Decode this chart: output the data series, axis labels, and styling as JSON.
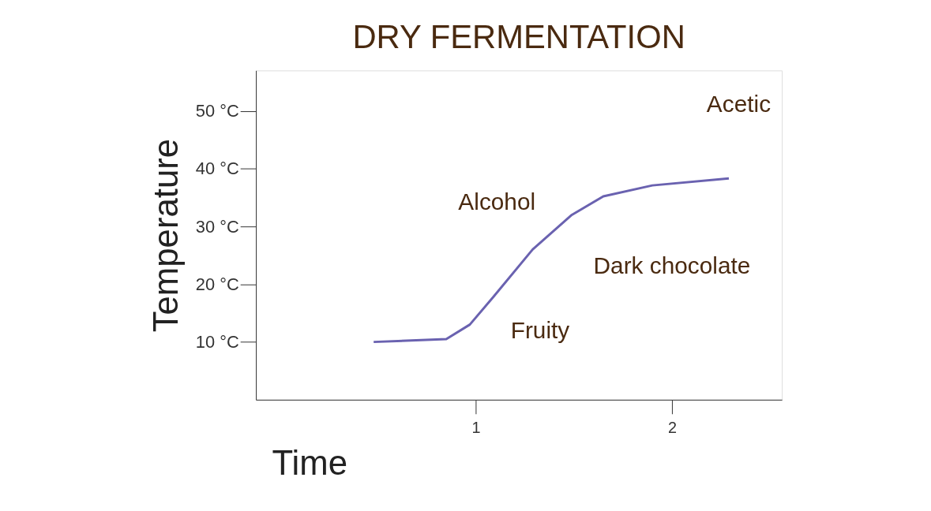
{
  "chart_data": {
    "type": "line",
    "title": "DRY FERMENTATION",
    "xlabel": "Time",
    "ylabel": "Temperature",
    "series": [
      {
        "color": "#6a62b0",
        "x": [
          0.48,
          0.85,
          0.97,
          1.09,
          1.29,
          1.49,
          1.65,
          1.9,
          2.29
        ],
        "values": [
          10,
          10.5,
          13,
          17.8,
          26,
          32,
          35.2,
          37.1,
          38.3
        ]
      }
    ],
    "xlim": [
      -0.12,
      2.56
    ],
    "xticks": [
      1,
      2
    ],
    "ylim": [
      0,
      57
    ],
    "yticks": [
      {
        "value": 10,
        "label": "10 °C"
      },
      {
        "value": 20,
        "label": "20 °C"
      },
      {
        "value": 30,
        "label": "30 °C"
      },
      {
        "value": 40,
        "label": "40 °C"
      },
      {
        "value": 50,
        "label": "50 °C"
      }
    ],
    "annotations": [
      "Alcohol",
      "Dark chocolate",
      "Fruity",
      "Acetic"
    ],
    "grid": false,
    "marker": "none",
    "line_style": "solid"
  }
}
